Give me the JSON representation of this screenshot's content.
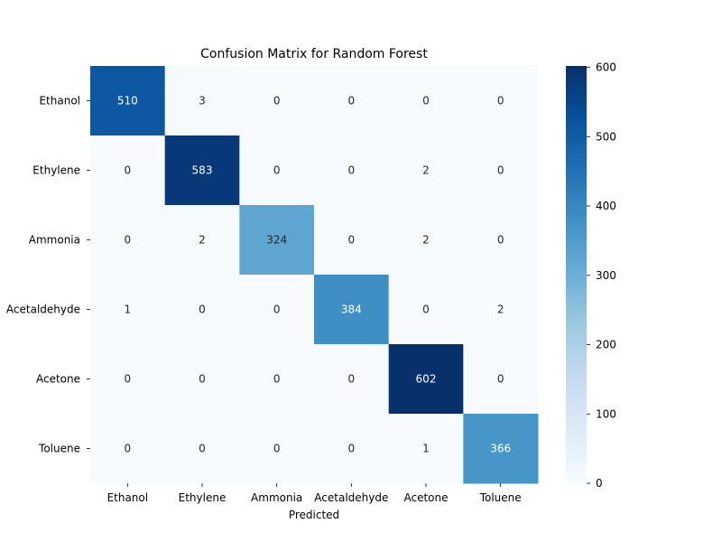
{
  "chart_data": {
    "type": "heatmap",
    "title": "Confusion Matrix for Random Forest",
    "xlabel": "Predicted",
    "ylabel": "",
    "x_categories": [
      "Ethanol",
      "Ethylene",
      "Ammonia",
      "Acetaldehyde",
      "Acetone",
      "Toluene"
    ],
    "y_categories": [
      "Ethanol",
      "Ethylene",
      "Ammonia",
      "Acetaldehyde",
      "Acetone",
      "Toluene"
    ],
    "values": [
      [
        510,
        3,
        0,
        0,
        0,
        0
      ],
      [
        0,
        583,
        0,
        0,
        2,
        0
      ],
      [
        0,
        2,
        324,
        0,
        2,
        0
      ],
      [
        1,
        0,
        0,
        384,
        0,
        2
      ],
      [
        0,
        0,
        0,
        0,
        602,
        0
      ],
      [
        0,
        0,
        0,
        0,
        1,
        366
      ]
    ],
    "colormap": "Blues",
    "colorbar": {
      "range": [
        0,
        602
      ],
      "ticks": [
        0,
        100,
        200,
        300,
        400,
        500,
        600
      ]
    }
  }
}
